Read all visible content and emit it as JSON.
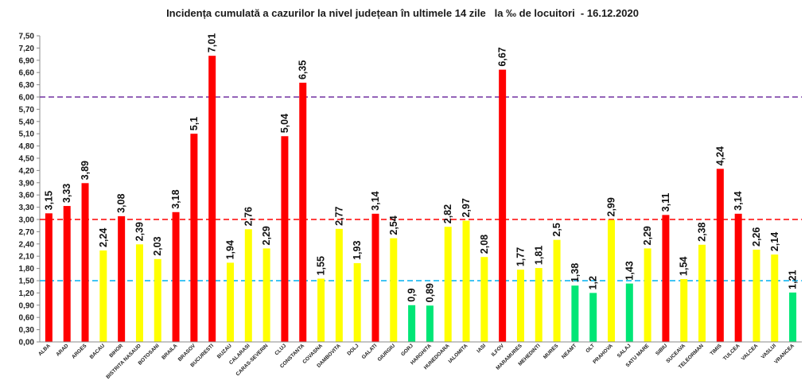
{
  "chart_data": {
    "type": "bar",
    "title": "Incidența cumulată a cazurilor la nivel județean în ultimele 14 zile   la ‰ de locuitori  - 16.12.2020",
    "xlabel": "",
    "ylabel": "",
    "ylim": [
      0,
      7.5
    ],
    "yticks": [
      "0,00",
      "0,30",
      "0,60",
      "0,90",
      "1,20",
      "1,50",
      "1,80",
      "2,10",
      "2,40",
      "2,70",
      "3,00",
      "3,30",
      "3,60",
      "3,90",
      "4,20",
      "4,50",
      "4,80",
      "5,10",
      "5,40",
      "5,70",
      "6,00",
      "6,30",
      "6,60",
      "6,90",
      "7,20",
      "7,50"
    ],
    "categories": [
      "ALBA",
      "ARAD",
      "ARGES",
      "BACAU",
      "BIHOR",
      "BISTRITA NASAUD",
      "BOTOSANI",
      "BRAILA",
      "BRASOV",
      "BUCURESTI",
      "BUZAU",
      "CALARASI",
      "CARAS-SEVERIN",
      "CLUJ",
      "CONSTANTA",
      "COVASNA",
      "DAMBOVITA",
      "DOLJ",
      "GALATI",
      "GIURGIU",
      "GORJ",
      "HARGHITA",
      "HUNEDOARA",
      "IALOMITA",
      "IASI",
      "ILFOV",
      "MARAMURES",
      "MEHEDINTI",
      "MURES",
      "NEAMT",
      "OLT",
      "PRAHOVA",
      "SALAJ",
      "SATU MARE",
      "SIBIU",
      "SUCEAVA",
      "TELEORMAN",
      "TIMIS",
      "TULCEA",
      "VALCEA",
      "VASLUI",
      "VRANCEA"
    ],
    "values": [
      3.15,
      3.33,
      3.89,
      2.24,
      3.08,
      2.39,
      2.03,
      3.18,
      5.1,
      7.01,
      1.94,
      2.76,
      2.29,
      5.04,
      6.35,
      1.55,
      2.77,
      1.93,
      3.14,
      2.54,
      0.9,
      0.89,
      2.82,
      2.97,
      2.08,
      6.67,
      1.77,
      1.81,
      2.5,
      1.38,
      1.2,
      2.99,
      1.43,
      2.29,
      3.11,
      1.54,
      2.38,
      4.24,
      3.14,
      2.26,
      2.14,
      1.21
    ],
    "value_labels": [
      "3,15",
      "3,33",
      "3,89",
      "2,24",
      "3,08",
      "2,39",
      "2,03",
      "3,18",
      "5,1",
      "7,01",
      "1,94",
      "2,76",
      "2,29",
      "5,04",
      "6,35",
      "1,55",
      "2,77",
      "1,93",
      "3,14",
      "2,54",
      "0,9",
      "0,89",
      "2,82",
      "2,97",
      "2,08",
      "6,67",
      "1,77",
      "1,81",
      "2,5",
      "1,38",
      "1,2",
      "2,99",
      "1,43",
      "2,29",
      "3,11",
      "1,54",
      "2,38",
      "4,24",
      "3,14",
      "2,26",
      "2,14",
      "1,21"
    ],
    "thresholds": [
      {
        "value": 6.0,
        "color": "#7030a0"
      },
      {
        "value": 3.0,
        "color": "#ff0000"
      },
      {
        "value": 1.5,
        "color": "#00b0f0"
      }
    ],
    "colors": {
      "red": "#ff0000",
      "yellow": "#ffff00",
      "green": "#00e676"
    },
    "grid": false,
    "legend": "none"
  }
}
